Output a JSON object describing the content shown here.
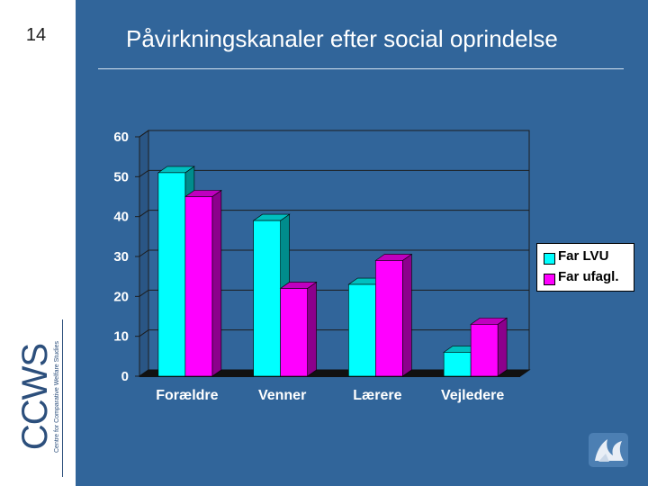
{
  "slide": {
    "number": "14",
    "title": "Påvirkningskanaler efter social oprindelse"
  },
  "logo": {
    "letters": "CCWS",
    "caption": "Centre for Comparative Welfare Studies"
  },
  "colors": {
    "background": "#31659a",
    "series1": "#00ffff",
    "series2": "#ff00ff"
  },
  "chart_data": {
    "type": "bar",
    "title": "",
    "xlabel": "",
    "ylabel": "",
    "categories": [
      "Forældre",
      "Venner",
      "Lærere",
      "Vejledere"
    ],
    "series": [
      {
        "name": "Far LVU",
        "values": [
          51,
          39,
          23,
          6
        ]
      },
      {
        "name": "Far ufagl.",
        "values": [
          45,
          22,
          29,
          13
        ]
      }
    ],
    "ylim": [
      0,
      60
    ],
    "yticks": [
      "0",
      "10",
      "20",
      "30",
      "40",
      "50",
      "60"
    ],
    "legend_position": "right",
    "style": "3d"
  }
}
